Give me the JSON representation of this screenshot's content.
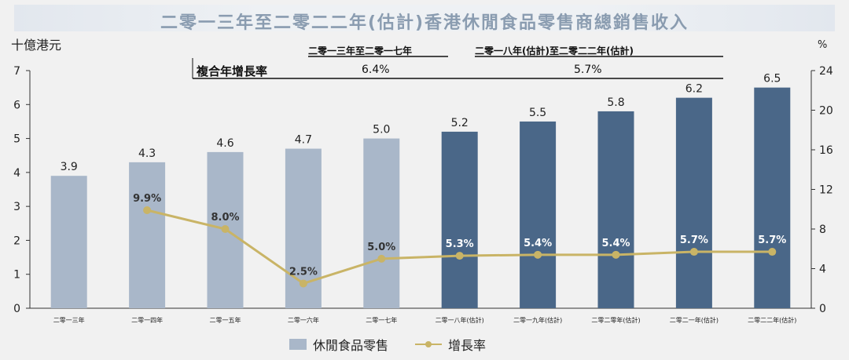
{
  "title": "二零一三年至二零二二年(估計)香港休閒食品零售商總銷售收入",
  "chart_data": {
    "type": "bar",
    "left_unit": "十億港元",
    "right_unit": "%",
    "categories": [
      "二零一三年",
      "二零一四年",
      "二零一五年",
      "二零一六年",
      "二零一七年",
      "二零一八年(估計)",
      "二零一九年(估計)",
      "二零二零年(估計)",
      "二零二一年(估計)",
      "二零二二年(估計)"
    ],
    "bar_series": {
      "name": "休閒食品零售",
      "values": [
        3.9,
        4.3,
        4.6,
        4.7,
        5.0,
        5.2,
        5.5,
        5.8,
        6.2,
        6.5
      ],
      "labels": [
        "3.9",
        "4.3",
        "4.6",
        "4.7",
        "5.0",
        "5.2",
        "5.5",
        "5.8",
        "6.2",
        "6.5"
      ],
      "colors": [
        "#a9b7c9",
        "#a9b7c9",
        "#a9b7c9",
        "#a9b7c9",
        "#a9b7c9",
        "#4a6788",
        "#4a6788",
        "#4a6788",
        "#4a6788",
        "#4a6788"
      ]
    },
    "line_series": {
      "name": "增長率",
      "values": [
        null,
        9.9,
        8.0,
        2.5,
        5.0,
        5.3,
        5.4,
        5.4,
        5.7,
        5.7
      ],
      "labels": [
        null,
        "9.9%",
        "8.0%",
        "2.5%",
        "5.0%",
        "5.3%",
        "5.4%",
        "5.4%",
        "5.7%",
        "5.7%"
      ],
      "color": "#c9b466"
    },
    "y_left": {
      "min": 0,
      "max": 7,
      "ticks": [
        "0",
        "1",
        "2",
        "3",
        "4",
        "5",
        "6",
        "7"
      ]
    },
    "y_right": {
      "min": 0,
      "max": 24,
      "ticks": [
        "0",
        "4",
        "8",
        "12",
        "16",
        "20",
        "24"
      ]
    },
    "cagr": {
      "label": "複合年增長率",
      "periods": [
        {
          "header": "二零一三年至二零一七年",
          "value": "6.4%"
        },
        {
          "header": "二零一八年(估計)至二零二二年(估計)",
          "value": "5.7%"
        }
      ]
    },
    "legend": {
      "bar": "休閒食品零售",
      "line": "增長率",
      "position": "bottom"
    }
  }
}
